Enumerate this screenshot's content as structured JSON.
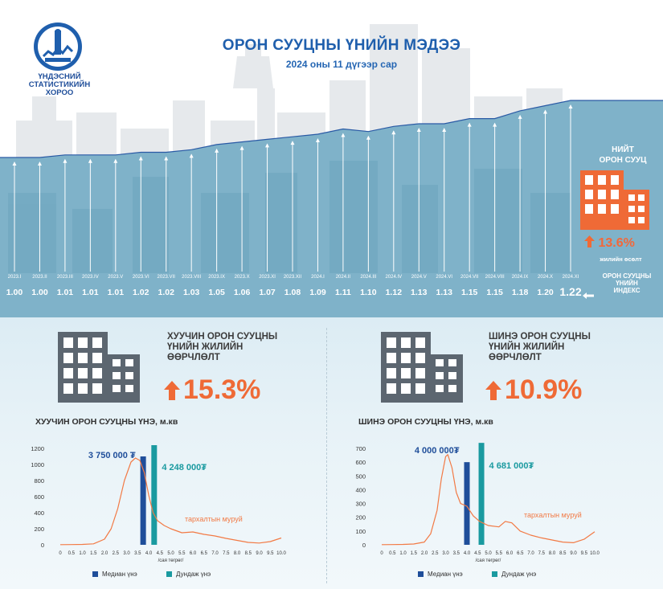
{
  "header": {
    "org_line1": "ҮНДЭСНИЙ",
    "org_line2": "СТАТИСТИКИЙН",
    "org_line3": "ХОРОО",
    "title": "ОРОН СУУЦНЫ ҮНИЙН МЭДЭЭ",
    "subtitle": "2024 оны 11 дүгээр сар"
  },
  "index_panel": {
    "label_line1": "ОРОН СУУЦНЫ",
    "label_line2": "ҮНИЙН",
    "label_line3": "ИНДЕКС"
  },
  "total": {
    "label_line1": "НИЙТ",
    "label_line2": "ОРОН СУУЦ",
    "growth": "13.6%",
    "growth_label": "жилийн өсөлт"
  },
  "old_panel": {
    "title_line1": "ХУУЧИН ОРОН СУУЦНЫ",
    "title_line2": "ҮНИЙН ЖИЛИЙН",
    "title_line3": "ӨӨРЧЛӨЛТ",
    "pct": "15.3%",
    "chart_title": "ХУУЧИН ОРОН СУУЦНЫ ҮНЭ, м.кв"
  },
  "new_panel": {
    "title_line1": "ШИНЭ ОРОН СУУЦНЫ",
    "title_line2": "ҮНИЙН ЖИЛИЙН",
    "title_line3": "ӨӨРЧЛӨЛТ",
    "pct": "10.9%",
    "chart_title": "ШИНЭ ОРОН СУУЦНЫ ҮНЭ, м.кв"
  },
  "legend": {
    "median": "Медиан үнэ",
    "mean": "Дундаж үнэ"
  },
  "colors": {
    "brand_blue": "#1f5fad",
    "accent_orange": "#ef6a36",
    "median_bar": "#1f4e9a",
    "mean_bar": "#1a9aa0",
    "curve": "#f27a45",
    "area_fill": "#7fb2c9"
  },
  "chart_data": [
    {
      "type": "line",
      "id": "price_index",
      "x": [
        "2023.I",
        "2023.II",
        "2023.III",
        "2023.IV",
        "2023.V",
        "2023.VI",
        "2023.VII",
        "2023.VIII",
        "2023.IX",
        "2023.X",
        "2023.XI",
        "2023.XII",
        "2024.I",
        "2024.II",
        "2024.III",
        "2024.IV",
        "2024.V",
        "2024.VI",
        "2024.VII",
        "2024.VIII",
        "2024.IX",
        "2024.X",
        "2024.XI"
      ],
      "labels": [
        "1.00",
        "1.00",
        "1.01",
        "1.01",
        "1.01",
        "1.02",
        "1.02",
        "1.03",
        "1.05",
        "1.06",
        "1.07",
        "1.08",
        "1.09",
        "1.11",
        "1.10",
        "1.12",
        "1.13",
        "1.13",
        "1.15",
        "1.15",
        "1.18",
        "1.20",
        "1.22"
      ],
      "values": [
        1.0,
        1.0,
        1.01,
        1.01,
        1.01,
        1.02,
        1.02,
        1.03,
        1.05,
        1.06,
        1.07,
        1.08,
        1.09,
        1.11,
        1.1,
        1.12,
        1.13,
        1.13,
        1.15,
        1.15,
        1.18,
        1.2,
        1.22
      ]
    },
    {
      "type": "bar",
      "id": "old_price_distribution",
      "xlabel": "/сая төгрөг/",
      "xticks": [
        "0",
        "0.5",
        "1.0",
        "1.5",
        "2.0",
        "2.5",
        "3.0",
        "3.5",
        "4.0",
        "4.5",
        "5.0",
        "5.5",
        "6.0",
        "6.5",
        "7.0",
        "7.5",
        "8.0",
        "8.5",
        "9.0",
        "9.5",
        "10.0"
      ],
      "yticks": [
        "0",
        "200",
        "400",
        "600",
        "800",
        "1000",
        "1200"
      ],
      "ylim": [
        0,
        1200
      ],
      "xlim": [
        0,
        10
      ],
      "median": {
        "x": 3.75,
        "value": 1100,
        "label": "3 750 000 ₮"
      },
      "mean": {
        "x": 4.248,
        "value": 1240,
        "label": "4 248 000₮"
      },
      "curve_label": "тархалтын муруй",
      "curve": [
        [
          0,
          2
        ],
        [
          0.5,
          3
        ],
        [
          1.0,
          5
        ],
        [
          1.5,
          12
        ],
        [
          2.0,
          70
        ],
        [
          2.3,
          200
        ],
        [
          2.6,
          450
        ],
        [
          2.9,
          800
        ],
        [
          3.2,
          1030
        ],
        [
          3.4,
          1080
        ],
        [
          3.6,
          1050
        ],
        [
          3.8,
          900
        ],
        [
          4.0,
          620
        ],
        [
          4.2,
          400
        ],
        [
          4.4,
          300
        ],
        [
          4.7,
          240
        ],
        [
          5.0,
          200
        ],
        [
          5.5,
          150
        ],
        [
          6.0,
          160
        ],
        [
          6.5,
          130
        ],
        [
          7.0,
          110
        ],
        [
          7.5,
          80
        ],
        [
          8.0,
          55
        ],
        [
          8.5,
          30
        ],
        [
          9.0,
          22
        ],
        [
          9.5,
          40
        ],
        [
          10.0,
          85
        ]
      ]
    },
    {
      "type": "bar",
      "id": "new_price_distribution",
      "xlabel": "/сая төгрөг/",
      "xticks": [
        "0",
        "0.5",
        "1.0",
        "1.5",
        "2.0",
        "2.5",
        "3.0",
        "3.5",
        "4.0",
        "4.5",
        "5.0",
        "5.5",
        "6.0",
        "6.5",
        "7.0",
        "7.5",
        "8.0",
        "8.5",
        "9.0",
        "9.5",
        "10.0"
      ],
      "yticks": [
        "0",
        "100",
        "200",
        "300",
        "400",
        "500",
        "600",
        "700"
      ],
      "ylim": [
        0,
        700
      ],
      "xlim": [
        0,
        10
      ],
      "median": {
        "x": 4.0,
        "value": 600,
        "label": "4 000 000₮"
      },
      "mean": {
        "x": 4.681,
        "value": 740,
        "label": "4 681 000₮"
      },
      "curve_label": "тархалтын муруй",
      "curve": [
        [
          0,
          1
        ],
        [
          0.5,
          2
        ],
        [
          1.0,
          3
        ],
        [
          1.5,
          6
        ],
        [
          2.0,
          20
        ],
        [
          2.3,
          80
        ],
        [
          2.6,
          250
        ],
        [
          2.8,
          480
        ],
        [
          3.0,
          640
        ],
        [
          3.1,
          655
        ],
        [
          3.3,
          560
        ],
        [
          3.5,
          380
        ],
        [
          3.7,
          300
        ],
        [
          4.0,
          280
        ],
        [
          4.3,
          210
        ],
        [
          4.6,
          170
        ],
        [
          5.0,
          140
        ],
        [
          5.5,
          130
        ],
        [
          5.8,
          170
        ],
        [
          6.1,
          160
        ],
        [
          6.5,
          100
        ],
        [
          7.0,
          70
        ],
        [
          7.5,
          50
        ],
        [
          8.0,
          35
        ],
        [
          8.5,
          20
        ],
        [
          9.0,
          15
        ],
        [
          9.5,
          40
        ],
        [
          10.0,
          95
        ]
      ]
    }
  ]
}
